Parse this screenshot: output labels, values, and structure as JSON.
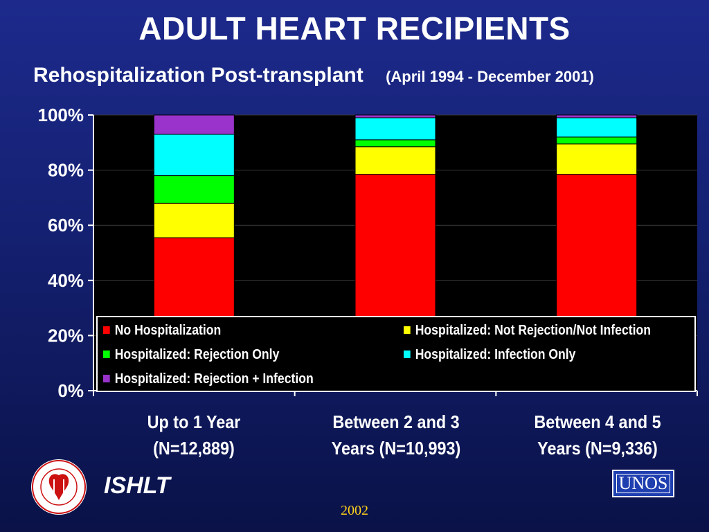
{
  "header": {
    "title": "ADULT HEART RECIPIENTS",
    "subtitle": "Rehospitalization Post-transplant",
    "date_range": "(April 1994 - December 2001)"
  },
  "footer": {
    "org": "ISHLT",
    "year": "2002",
    "partner_logo_text": "UNOS"
  },
  "chart_data": {
    "type": "bar",
    "stacked": true,
    "categories": [
      "Up to 1 Year (N=12,889)",
      "Between 2 and 3 Years   (N=10,993)",
      "Between 4 and 5 Years  (N=9,336)"
    ],
    "category_lines": [
      [
        "Up to 1 Year",
        "(N=12,889)"
      ],
      [
        "Between 2 and 3",
        "Years   (N=10,993)"
      ],
      [
        "Between 4 and 5",
        "Years  (N=9,336)"
      ]
    ],
    "series": [
      {
        "name": "No Hospitalization",
        "color": "#ff0000",
        "values": [
          55.5,
          78.5,
          78.5
        ]
      },
      {
        "name": "Hospitalized: Not Rejection/Not Infection",
        "color": "#ffff00",
        "values": [
          12.5,
          10,
          11
        ]
      },
      {
        "name": "Hospitalized: Rejection Only",
        "color": "#00ff00",
        "values": [
          10,
          2.5,
          2.5
        ]
      },
      {
        "name": "Hospitalized: Infection Only",
        "color": "#00ffff",
        "values": [
          15,
          8,
          7
        ]
      },
      {
        "name": "Hospitalized: Rejection + Infection",
        "color": "#9933cc",
        "values": [
          7,
          1,
          1
        ]
      }
    ],
    "yticks": [
      "0%",
      "20%",
      "40%",
      "60%",
      "80%",
      "100%"
    ],
    "ylim": [
      0,
      100
    ],
    "grid": true,
    "plot_background": "#000000",
    "legend_placement": "bottom-inside"
  }
}
